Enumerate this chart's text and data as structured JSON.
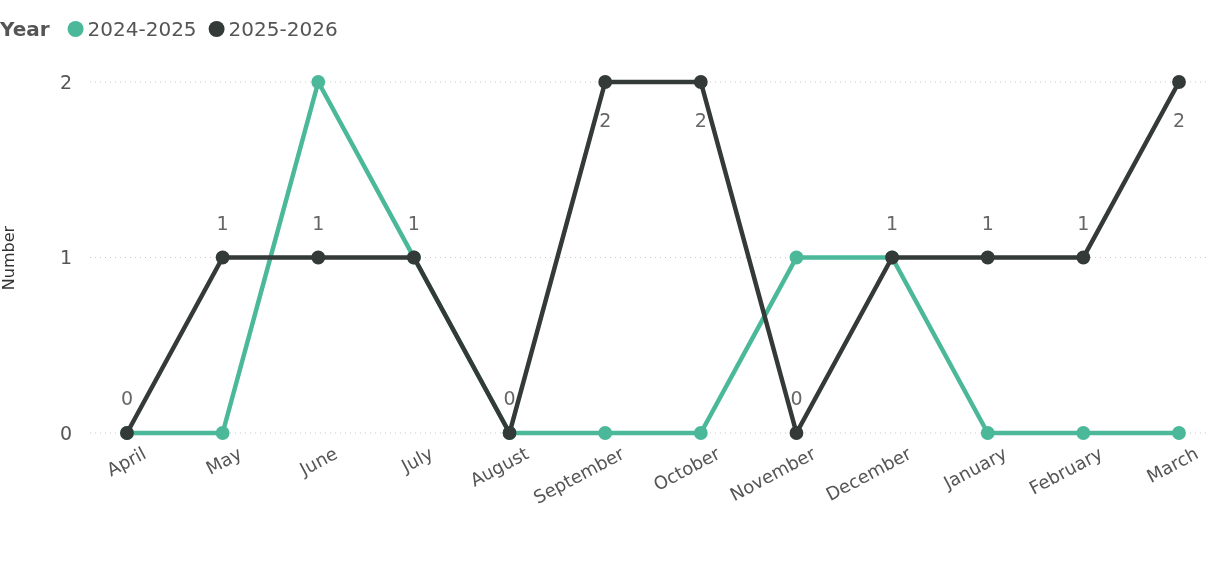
{
  "chart_data": {
    "type": "line",
    "legend_title": "Year",
    "ylabel": "Number",
    "categories": [
      "April",
      "May",
      "June",
      "July",
      "August",
      "September",
      "October",
      "November",
      "December",
      "January",
      "February",
      "March"
    ],
    "series": [
      {
        "name": "2024-2025",
        "color": "#4cb89a",
        "values": [
          0,
          0,
          2,
          1,
          0,
          0,
          0,
          1,
          1,
          0,
          0,
          0
        ]
      },
      {
        "name": "2025-2026",
        "color": "#333a38",
        "values": [
          0,
          1,
          1,
          1,
          0,
          2,
          2,
          0,
          1,
          1,
          1,
          2
        ],
        "value_labels": [
          "0",
          "1",
          "1",
          "1",
          "0",
          "2",
          "2",
          "0",
          "1",
          "1",
          "1",
          "2"
        ]
      }
    ],
    "ylim": [
      0,
      2
    ],
    "yticks": [
      0,
      1,
      2
    ],
    "grid": "y",
    "legend": "top left",
    "marker": "circle",
    "line_style": "solid"
  }
}
